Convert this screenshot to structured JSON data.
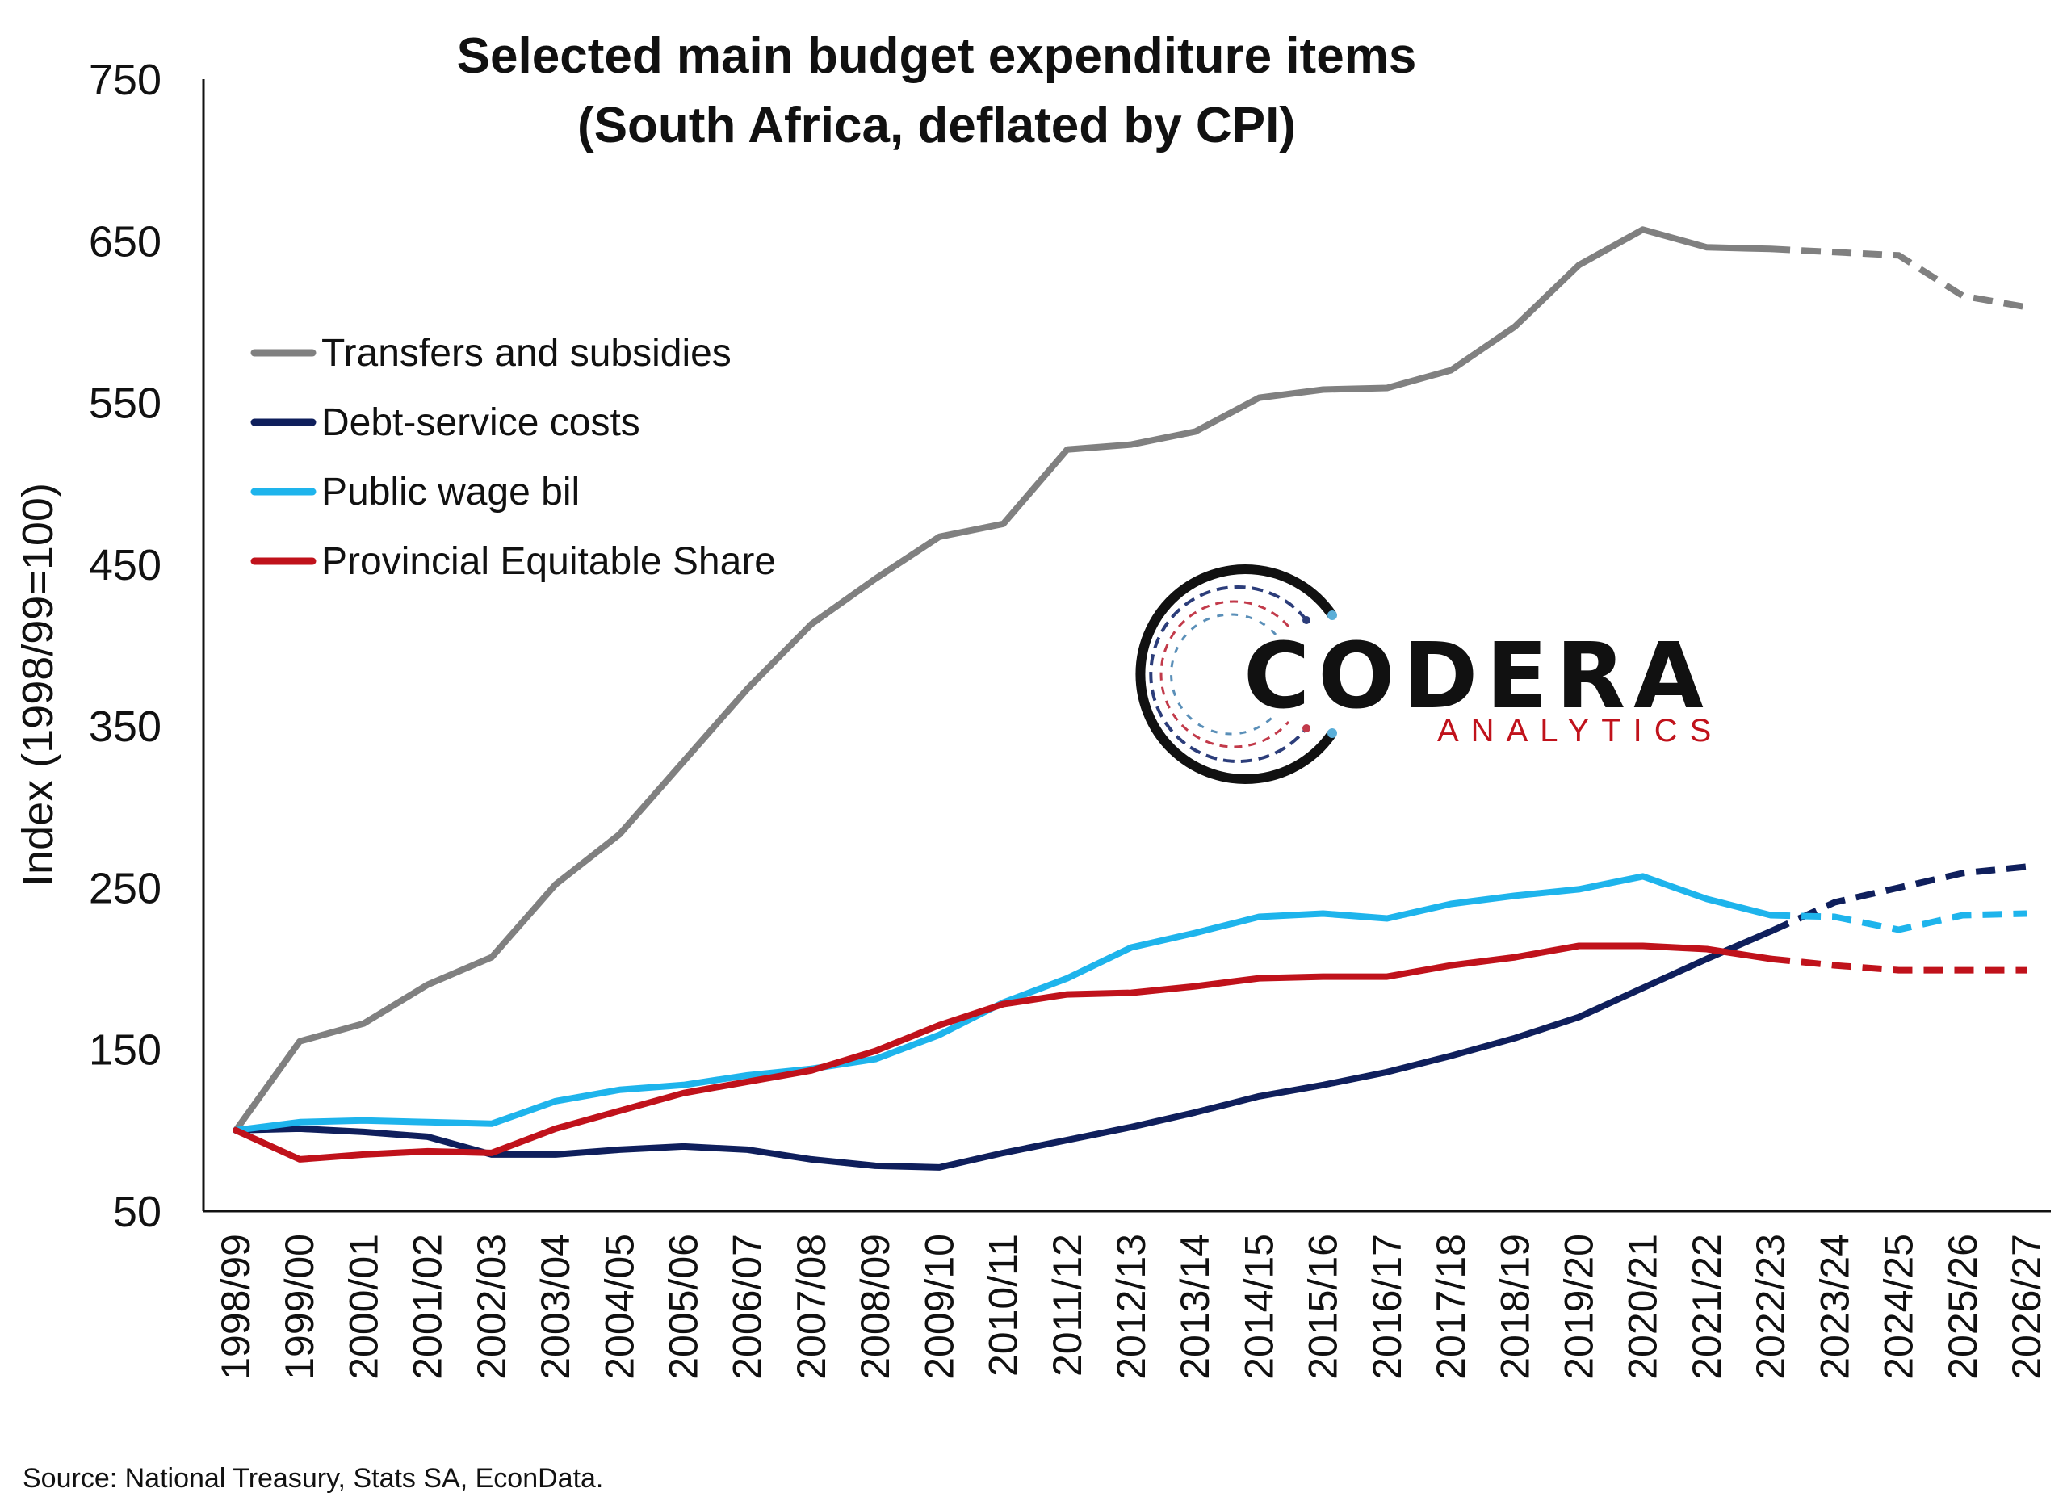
{
  "chart_data": {
    "type": "line",
    "title_line1": "Selected main budget expenditure items",
    "title_line2": "(South Africa, deflated by CPI)",
    "xlabel": "",
    "ylabel": "Index (1998/99=100)",
    "ylim": [
      50,
      750
    ],
    "yticks": [
      50,
      150,
      250,
      350,
      450,
      550,
      650,
      750
    ],
    "categories": [
      "1998/99",
      "1999/00",
      "2000/01",
      "2001/02",
      "2002/03",
      "2003/04",
      "2004/05",
      "2005/06",
      "2006/07",
      "2007/08",
      "2008/09",
      "2009/10",
      "2010/11",
      "2011/12",
      "2012/13",
      "2013/14",
      "2014/15",
      "2015/16",
      "2016/17",
      "2017/18",
      "2018/19",
      "2019/20",
      "2020/21",
      "2021/22",
      "2022/23",
      "2023/24",
      "2024/25",
      "2025/26",
      "2026/27"
    ],
    "forecast_from": "2022/23",
    "legend_position": "top-left",
    "grid": false,
    "series": [
      {
        "name": "Transfers and subsidies",
        "color": "#808080",
        "values": [
          100,
          155,
          166,
          190,
          207,
          252,
          283,
          328,
          373,
          413,
          441,
          467,
          475,
          521,
          524,
          532,
          553,
          558,
          559,
          570,
          597,
          635,
          657,
          646,
          645,
          643,
          641,
          616,
          609
        ]
      },
      {
        "name": "Debt-service costs",
        "color": "#0f1f5c",
        "values": [
          100,
          101,
          99,
          96,
          85,
          85,
          88,
          90,
          88,
          82,
          78,
          77,
          86,
          94,
          102,
          111,
          121,
          128,
          136,
          146,
          157,
          170,
          188,
          206,
          223,
          241,
          250,
          259,
          263
        ]
      },
      {
        "name": "Public wage bil",
        "color": "#1eb4ec",
        "values": [
          100,
          105,
          106,
          105,
          104,
          118,
          125,
          128,
          134,
          138,
          144,
          159,
          179,
          194,
          213,
          222,
          232,
          234,
          231,
          240,
          245,
          249,
          257,
          243,
          233,
          232,
          224,
          233,
          234
        ]
      },
      {
        "name": "Provincial Equitable Share",
        "color": "#c0121b",
        "values": [
          100,
          82,
          85,
          87,
          86,
          101,
          112,
          123,
          130,
          137,
          149,
          165,
          178,
          184,
          185,
          189,
          194,
          195,
          195,
          202,
          207,
          214,
          214,
          212,
          206,
          202,
          199,
          199,
          199
        ]
      }
    ],
    "source": "Source: National Treasury, Stats SA, EconData.",
    "logo": {
      "main": "CODERA",
      "sub": "ANALYTICS"
    }
  }
}
